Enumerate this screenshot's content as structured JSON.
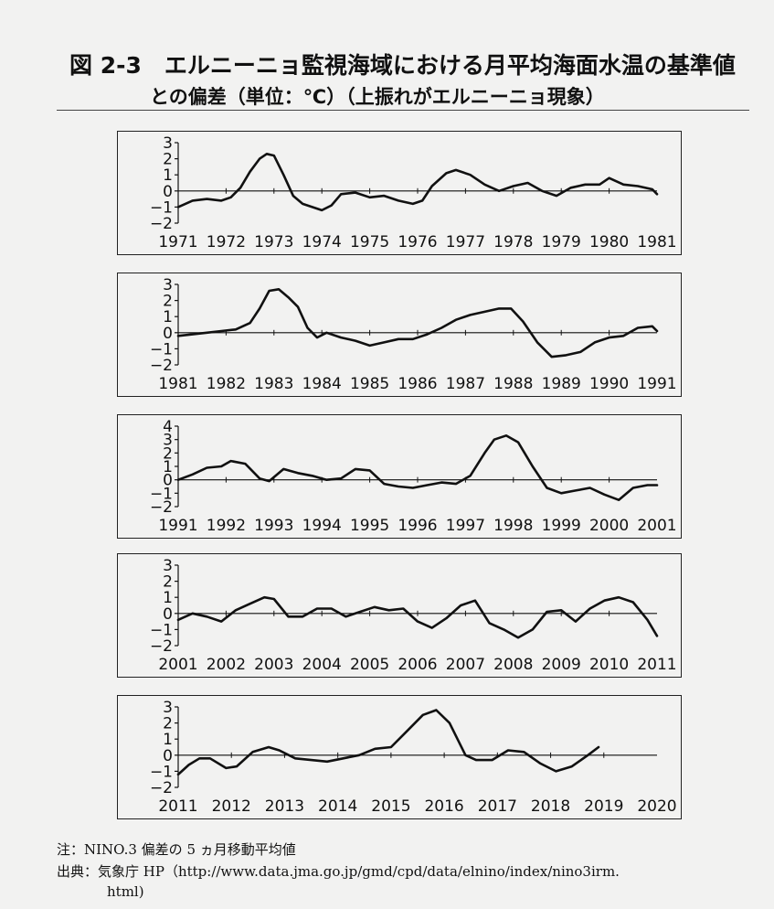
{
  "title_line1": "図 2-3　エルニーニョ監視海域における月平均海面水温の基準値",
  "title_line2": "との偏差（単位：℃）（上振れがエルニーニョ現象）",
  "note": "注：NINO.3 偏差の 5 ヵ月移動平均値",
  "source": "出典：気象庁 HP（http://www.data.jma.go.jp/gmd/cpd/data/elnino/index/nino3irm.",
  "source_cont": "html)",
  "colors": {
    "line": "#111111",
    "background": "#f2f2f1"
  },
  "chart_data": [
    {
      "type": "line",
      "xlim": [
        1971,
        1981
      ],
      "ylim": [
        -2,
        3
      ],
      "y_ticks": [
        "3",
        "2",
        "1",
        "0",
        "−1",
        "−2"
      ],
      "x_tick_labels": [
        "1971",
        "1972",
        "1973",
        "1974",
        "1975",
        "1976",
        "1977",
        "1978",
        "1979",
        "1980",
        "1981"
      ],
      "series": [
        {
          "x": [
            1971.0,
            1971.3,
            1971.6,
            1971.9,
            1972.1,
            1972.3,
            1972.5,
            1972.7,
            1972.85,
            1973.0,
            1973.2,
            1973.4,
            1973.6,
            1973.8,
            1974.0,
            1974.2,
            1974.4,
            1974.7,
            1975.0,
            1975.3,
            1975.6,
            1975.9,
            1976.1,
            1976.3,
            1976.6,
            1976.8,
            1977.1,
            1977.4,
            1977.7,
            1978.0,
            1978.3,
            1978.6,
            1978.9,
            1979.2,
            1979.5,
            1979.8,
            1980.0,
            1980.3,
            1980.6,
            1980.9,
            1981.0
          ],
          "y": [
            -1.0,
            -0.6,
            -0.5,
            -0.6,
            -0.4,
            0.2,
            1.2,
            2.0,
            2.3,
            2.2,
            1.0,
            -0.3,
            -0.8,
            -1.0,
            -1.2,
            -0.9,
            -0.2,
            -0.1,
            -0.4,
            -0.3,
            -0.6,
            -0.8,
            -0.6,
            0.3,
            1.1,
            1.3,
            1.0,
            0.4,
            0.0,
            0.3,
            0.5,
            0.0,
            -0.3,
            0.2,
            0.4,
            0.4,
            0.8,
            0.4,
            0.3,
            0.1,
            -0.2
          ]
        }
      ]
    },
    {
      "type": "line",
      "xlim": [
        1981,
        1991
      ],
      "ylim": [
        -2,
        3
      ],
      "y_ticks": [
        "3",
        "2",
        "1",
        "0",
        "−1",
        "−2"
      ],
      "x_tick_labels": [
        "1981",
        "1982",
        "1983",
        "1984",
        "1985",
        "1986",
        "1987",
        "1988",
        "1989",
        "1990",
        "1991"
      ],
      "series": [
        {
          "x": [
            1981.0,
            1981.3,
            1981.6,
            1981.9,
            1982.2,
            1982.5,
            1982.7,
            1982.9,
            1983.1,
            1983.3,
            1983.5,
            1983.7,
            1983.9,
            1984.1,
            1984.4,
            1984.7,
            1985.0,
            1985.3,
            1985.6,
            1985.9,
            1986.2,
            1986.5,
            1986.8,
            1987.1,
            1987.4,
            1987.7,
            1987.95,
            1988.2,
            1988.5,
            1988.8,
            1989.1,
            1989.4,
            1989.7,
            1990.0,
            1990.3,
            1990.6,
            1990.9,
            1991.0
          ],
          "y": [
            -0.2,
            -0.1,
            0.0,
            0.1,
            0.2,
            0.6,
            1.5,
            2.6,
            2.7,
            2.2,
            1.6,
            0.3,
            -0.3,
            0.0,
            -0.3,
            -0.5,
            -0.8,
            -0.6,
            -0.4,
            -0.4,
            -0.1,
            0.3,
            0.8,
            1.1,
            1.3,
            1.5,
            1.5,
            0.7,
            -0.6,
            -1.5,
            -1.4,
            -1.2,
            -0.6,
            -0.3,
            -0.2,
            0.3,
            0.4,
            0.1
          ]
        }
      ]
    },
    {
      "type": "line",
      "xlim": [
        1991,
        2001
      ],
      "ylim": [
        -2,
        4
      ],
      "y_ticks": [
        "4",
        "3",
        "2",
        "1",
        "0",
        "−1",
        "−2"
      ],
      "x_tick_labels": [
        "1991",
        "1992",
        "1993",
        "1994",
        "1995",
        "1996",
        "1997",
        "1998",
        "1999",
        "2000",
        "2001"
      ],
      "series": [
        {
          "x": [
            1991.0,
            1991.3,
            1991.6,
            1991.9,
            1992.1,
            1992.4,
            1992.7,
            1992.9,
            1993.2,
            1993.5,
            1993.8,
            1994.1,
            1994.4,
            1994.7,
            1995.0,
            1995.3,
            1995.6,
            1995.9,
            1996.2,
            1996.5,
            1996.8,
            1997.1,
            1997.4,
            1997.6,
            1997.85,
            1998.1,
            1998.4,
            1998.7,
            1999.0,
            1999.3,
            1999.6,
            1999.9,
            2000.2,
            2000.5,
            2000.8,
            2001.0
          ],
          "y": [
            0.0,
            0.4,
            0.9,
            1.0,
            1.4,
            1.2,
            0.1,
            -0.1,
            0.8,
            0.5,
            0.3,
            0.0,
            0.1,
            0.8,
            0.7,
            -0.3,
            -0.5,
            -0.6,
            -0.4,
            -0.2,
            -0.3,
            0.3,
            2.0,
            3.0,
            3.3,
            2.8,
            1.0,
            -0.6,
            -1.0,
            -0.8,
            -0.6,
            -1.1,
            -1.5,
            -0.6,
            -0.4,
            -0.4
          ]
        }
      ]
    },
    {
      "type": "line",
      "xlim": [
        2001,
        2011
      ],
      "ylim": [
        -2,
        3
      ],
      "y_ticks": [
        "3",
        "2",
        "1",
        "0",
        "−1",
        "−2"
      ],
      "x_tick_labels": [
        "2001",
        "2002",
        "2003",
        "2004",
        "2005",
        "2006",
        "2007",
        "2008",
        "2009",
        "2010",
        "2011"
      ],
      "series": [
        {
          "x": [
            2001.0,
            2001.3,
            2001.6,
            2001.9,
            2002.2,
            2002.5,
            2002.8,
            2003.0,
            2003.3,
            2003.6,
            2003.9,
            2004.2,
            2004.5,
            2004.8,
            2005.1,
            2005.4,
            2005.7,
            2006.0,
            2006.3,
            2006.6,
            2006.9,
            2007.2,
            2007.5,
            2007.8,
            2008.1,
            2008.4,
            2008.7,
            2009.0,
            2009.3,
            2009.6,
            2009.9,
            2010.2,
            2010.5,
            2010.8,
            2011.0
          ],
          "y": [
            -0.4,
            0.0,
            -0.2,
            -0.5,
            0.2,
            0.6,
            1.0,
            0.9,
            -0.2,
            -0.2,
            0.3,
            0.3,
            -0.2,
            0.1,
            0.4,
            0.2,
            0.3,
            -0.5,
            -0.9,
            -0.3,
            0.5,
            0.8,
            -0.6,
            -1.0,
            -1.5,
            -1.0,
            0.1,
            0.2,
            -0.5,
            0.3,
            0.8,
            1.0,
            0.7,
            -0.4,
            -1.4
          ]
        }
      ]
    },
    {
      "type": "line",
      "xlim": [
        2011,
        2020
      ],
      "ylim": [
        -2,
        3
      ],
      "y_ticks": [
        "3",
        "2",
        "1",
        "0",
        "−1",
        "−2"
      ],
      "x_tick_labels": [
        "2011",
        "2012",
        "2013",
        "2014",
        "2015",
        "2016",
        "2017",
        "2018",
        "2019",
        "2020"
      ],
      "series": [
        {
          "x": [
            2011.0,
            2011.2,
            2011.4,
            2011.6,
            2011.9,
            2012.1,
            2012.4,
            2012.7,
            2012.9,
            2013.2,
            2013.5,
            2013.8,
            2014.1,
            2014.4,
            2014.7,
            2015.0,
            2015.3,
            2015.6,
            2015.85,
            2016.1,
            2016.4,
            2016.6,
            2016.9,
            2017.2,
            2017.5,
            2017.8,
            2018.1,
            2018.4,
            2018.7,
            2018.9
          ],
          "y": [
            -1.2,
            -0.6,
            -0.2,
            -0.2,
            -0.8,
            -0.7,
            0.2,
            0.5,
            0.3,
            -0.2,
            -0.3,
            -0.4,
            -0.2,
            0.0,
            0.4,
            0.5,
            1.5,
            2.5,
            2.8,
            2.0,
            0.0,
            -0.3,
            -0.3,
            0.3,
            0.2,
            -0.5,
            -1.0,
            -0.7,
            0.0,
            0.5
          ]
        }
      ]
    }
  ]
}
